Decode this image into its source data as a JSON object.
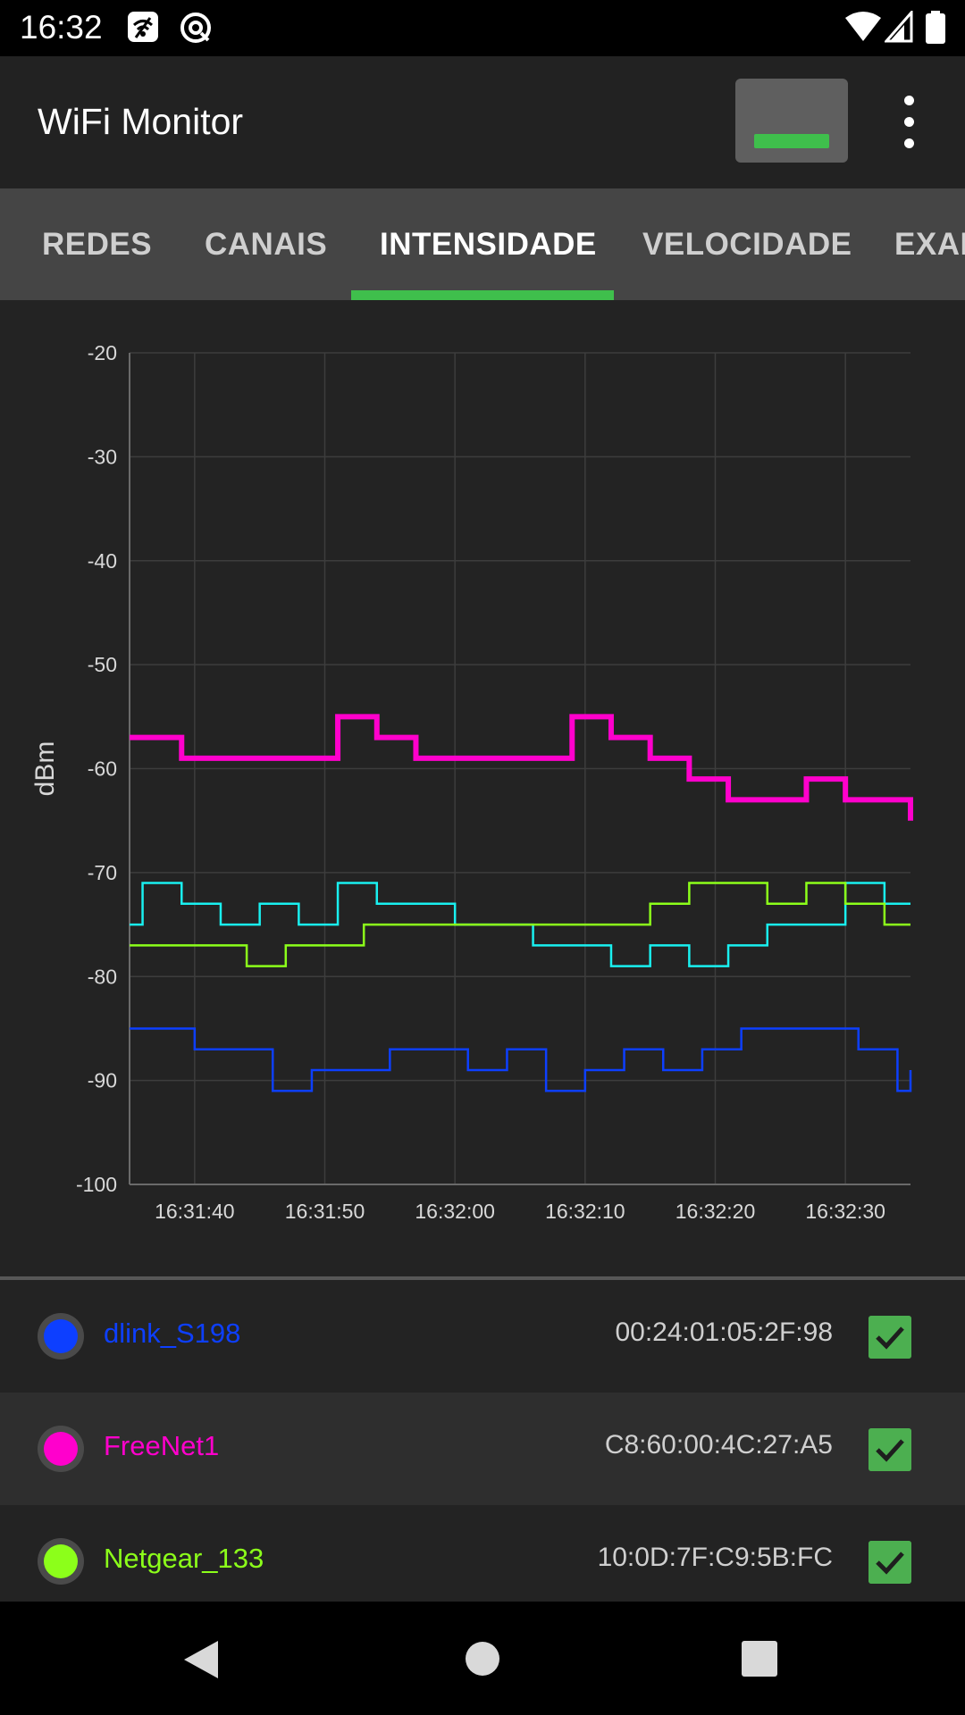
{
  "status_bar": {
    "time": "16:32"
  },
  "app_bar": {
    "title": "WiFi Monitor"
  },
  "tabs": [
    {
      "label": "REDES",
      "active": false
    },
    {
      "label": "CANAIS",
      "active": false
    },
    {
      "label": "INTENSIDADE",
      "active": true
    },
    {
      "label": "VELOCIDADE",
      "active": false
    },
    {
      "label": "EXAN",
      "active": false
    }
  ],
  "colors": {
    "accent": "#3fbf4c",
    "dlink": "#0d3fff",
    "freenet": "#ff00cc",
    "netgear": "#8cff1a",
    "cyan": "#19f0f0"
  },
  "chart_data": {
    "type": "line",
    "title": "",
    "xlabel": "",
    "ylabel": "dBm",
    "ylim": [
      -100,
      -20
    ],
    "y_ticks": [
      "-20",
      "-30",
      "-40",
      "-50",
      "-60",
      "-70",
      "-80",
      "-90",
      "-100"
    ],
    "x_ticks": [
      "16:31:40",
      "16:31:50",
      "16:32:00",
      "16:32:10",
      "16:32:20",
      "16:32:30"
    ],
    "xlim": [
      "16:31:35",
      "16:32:35"
    ],
    "grid": true,
    "step": true,
    "series": [
      {
        "name": "FreeNet1",
        "color": "#ff00cc",
        "x": [
          "16:31:35",
          "16:31:39",
          "16:31:51",
          "16:31:54",
          "16:31:57",
          "16:32:06",
          "16:32:09",
          "16:32:12",
          "16:32:15",
          "16:32:18",
          "16:32:21",
          "16:32:27",
          "16:32:30",
          "16:32:35"
        ],
        "y": [
          -57,
          -59,
          -55,
          -57,
          -59,
          -59,
          -55,
          -57,
          -59,
          -61,
          -63,
          -61,
          -63,
          -65
        ]
      },
      {
        "name": "",
        "color": "#19f0f0",
        "x": [
          "16:31:35",
          "16:31:36",
          "16:31:39",
          "16:31:42",
          "16:31:45",
          "16:31:48",
          "16:31:51",
          "16:31:54",
          "16:32:00",
          "16:32:06",
          "16:32:12",
          "16:32:15",
          "16:32:18",
          "16:32:21",
          "16:32:24",
          "16:32:30",
          "16:32:33",
          "16:32:35"
        ],
        "y": [
          -75,
          -71,
          -73,
          -75,
          -73,
          -75,
          -71,
          -73,
          -75,
          -77,
          -79,
          -77,
          -79,
          -77,
          -75,
          -71,
          -73,
          -73
        ]
      },
      {
        "name": "Netgear_133",
        "color": "#8cff1a",
        "x": [
          "16:31:35",
          "16:31:44",
          "16:31:47",
          "16:31:53",
          "16:32:00",
          "16:32:09",
          "16:32:15",
          "16:32:18",
          "16:32:24",
          "16:32:27",
          "16:32:30",
          "16:32:33",
          "16:32:35"
        ],
        "y": [
          -77,
          -79,
          -77,
          -75,
          -75,
          -75,
          -73,
          -71,
          -73,
          -71,
          -73,
          -75,
          -75
        ]
      },
      {
        "name": "dlink_S198",
        "color": "#0d3fff",
        "x": [
          "16:31:35",
          "16:31:40",
          "16:31:46",
          "16:31:49",
          "16:31:55",
          "16:32:01",
          "16:32:04",
          "16:32:07",
          "16:32:10",
          "16:32:13",
          "16:32:16",
          "16:32:19",
          "16:32:22",
          "16:32:25",
          "16:32:31",
          "16:32:34",
          "16:32:35"
        ],
        "y": [
          -85,
          -87,
          -91,
          -89,
          -87,
          -89,
          -87,
          -91,
          -89,
          -87,
          -89,
          -87,
          -85,
          -85,
          -87,
          -91,
          -89
        ]
      }
    ]
  },
  "networks": [
    {
      "name": "dlink_S198",
      "mac": "00:24:01:05:2F:98",
      "color": "#0d3fff",
      "checked": true
    },
    {
      "name": "FreeNet1",
      "mac": "C8:60:00:4C:27:A5",
      "color": "#ff00cc",
      "checked": true
    },
    {
      "name": "Netgear_133",
      "mac": "10:0D:7F:C9:5B:FC",
      "color": "#8cff1a",
      "checked": true
    }
  ]
}
